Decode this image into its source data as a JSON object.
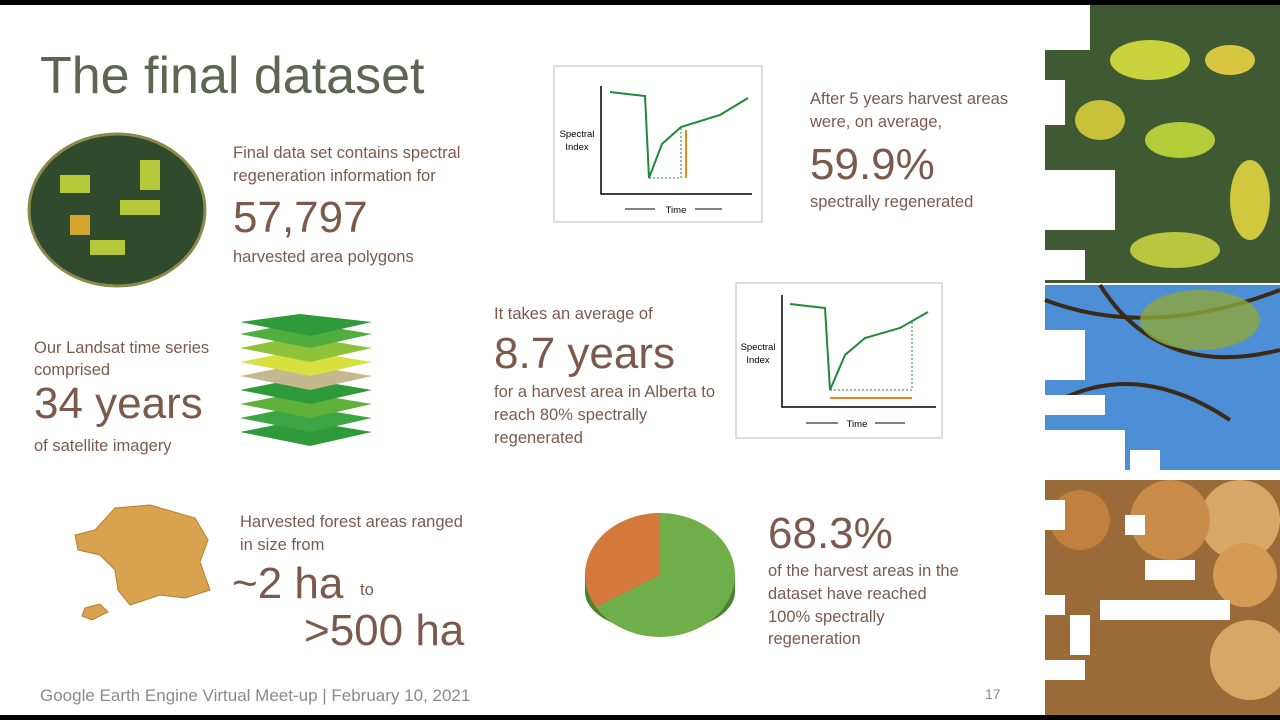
{
  "title": "The final dataset",
  "blocks": {
    "polygons": {
      "lead": [
        "Final data set contains spectral",
        "regeneration information for"
      ],
      "figure": "57,797",
      "trail": [
        "harvested area polygons"
      ]
    },
    "five_years": {
      "lead": [
        "After 5 years harvest areas",
        "were, on average,"
      ],
      "figure": "59.9%",
      "trail": [
        "spectrally regenerated"
      ]
    },
    "landsat": {
      "lead": [
        "Our Landsat time series",
        "comprised"
      ],
      "figure": "34 years",
      "trail": [
        "of satellite imagery"
      ]
    },
    "recovery": {
      "lead": [
        "It takes an average of"
      ],
      "figure": "8.7 years",
      "trail": [
        "for a harvest area in Alberta to",
        "reach 80% spectrally",
        "regenerated"
      ]
    },
    "sizes": {
      "lead": [
        "Harvested forest areas ranged",
        "in size from"
      ],
      "min": "~2 ha",
      "connector": "to",
      "max": ">500 ha"
    },
    "reached": {
      "figure": "68.3%",
      "trail": [
        "of the harvest areas in the",
        "dataset have reached",
        "100% spectrally",
        "regeneration"
      ]
    }
  },
  "diagrams": [
    {
      "y_label": [
        "Spectral",
        "Index"
      ],
      "x_label": "Time"
    },
    {
      "y_label": [
        "Spectral",
        "Index"
      ],
      "x_label": "Time"
    }
  ],
  "footer": "Google Earth Engine Virtual Meet-up | February 10, 2021",
  "page_number": "17"
}
